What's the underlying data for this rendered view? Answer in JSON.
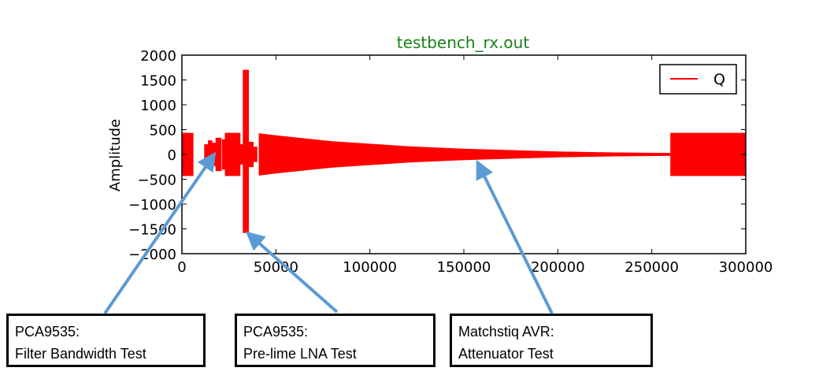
{
  "chart_data": {
    "type": "line",
    "title": "testbench_rx.out",
    "xlabel": "",
    "ylabel": "Amplitude",
    "xlim": [
      0,
      300000
    ],
    "ylim": [
      -2000,
      2000
    ],
    "xticks": [
      0,
      50000,
      100000,
      150000,
      200000,
      250000,
      300000
    ],
    "yticks": [
      2000,
      1500,
      1000,
      500,
      0,
      -500,
      -1000,
      -1500,
      -2000
    ],
    "xtick_labels": [
      "0",
      "50000",
      "100000",
      "150000",
      "200000",
      "250000",
      "300000"
    ],
    "ytick_labels": [
      "2000",
      "1500",
      "1000",
      "500",
      "0",
      "−500",
      "−1000",
      "−1500",
      "−2000"
    ],
    "legend": {
      "placement": "top-right",
      "entries": [
        "Q"
      ]
    },
    "grid": false,
    "series": [
      {
        "name": "Q",
        "color": "#ff0000",
        "style": "envelope",
        "segments": [
          {
            "x0": 0,
            "x1": 6000,
            "upper": [
              [
                0,
                430
              ],
              [
                6000,
                430
              ]
            ],
            "lower": [
              [
                0,
                -430
              ],
              [
                6000,
                -430
              ]
            ]
          },
          {
            "x0": 12000,
            "x1": 14000,
            "upper": [
              [
                12000,
                200
              ],
              [
                14000,
                200
              ]
            ],
            "lower": [
              [
                12000,
                -200
              ],
              [
                14000,
                -200
              ]
            ]
          },
          {
            "x0": 14000,
            "x1": 16000,
            "upper": [
              [
                14000,
                280
              ],
              [
                16000,
                280
              ]
            ],
            "lower": [
              [
                14000,
                -280
              ],
              [
                16000,
                -280
              ]
            ]
          },
          {
            "x0": 16000,
            "x1": 18000,
            "upper": [
              [
                16000,
                230
              ],
              [
                18000,
                230
              ]
            ],
            "lower": [
              [
                16000,
                -230
              ],
              [
                18000,
                -230
              ]
            ]
          },
          {
            "x0": 18000,
            "x1": 21000,
            "upper": [
              [
                18000,
                330
              ],
              [
                21000,
                330
              ]
            ],
            "lower": [
              [
                18000,
                -330
              ],
              [
                21000,
                -330
              ]
            ]
          },
          {
            "x0": 21500,
            "x1": 23000,
            "upper": [
              [
                21500,
                300
              ],
              [
                23000,
                300
              ]
            ],
            "lower": [
              [
                21500,
                -300
              ],
              [
                23000,
                -300
              ]
            ]
          },
          {
            "x0": 23000,
            "x1": 31000,
            "upper": [
              [
                23000,
                430
              ],
              [
                31000,
                430
              ]
            ],
            "lower": [
              [
                23000,
                -430
              ],
              [
                31000,
                -430
              ]
            ]
          },
          {
            "x0": 31000,
            "x1": 32500,
            "upper": [
              [
                31000,
                200
              ],
              [
                32500,
                200
              ]
            ],
            "lower": [
              [
                31000,
                -200
              ],
              [
                32500,
                -200
              ]
            ]
          },
          {
            "x0": 32500,
            "x1": 35500,
            "upper": [
              [
                32500,
                1700
              ],
              [
                35500,
                1700
              ]
            ],
            "lower": [
              [
                32500,
                -1580
              ],
              [
                35500,
                -1580
              ]
            ]
          },
          {
            "x0": 35500,
            "x1": 38000,
            "upper": [
              [
                35500,
                250
              ],
              [
                38000,
                250
              ]
            ],
            "lower": [
              [
                35500,
                -250
              ],
              [
                38000,
                -250
              ]
            ]
          },
          {
            "x0": 38000,
            "x1": 40000,
            "upper": [
              [
                38000,
                150
              ],
              [
                40000,
                150
              ]
            ],
            "lower": [
              [
                38000,
                -150
              ],
              [
                40000,
                -150
              ]
            ]
          },
          {
            "x0": 41000,
            "x1": 260000,
            "upper": [
              [
                41000,
                420
              ],
              [
                50000,
                380
              ],
              [
                80000,
                260
              ],
              [
                120000,
                160
              ],
              [
                150000,
                110
              ],
              [
                200000,
                55
              ],
              [
                230000,
                35
              ],
              [
                260000,
                25
              ]
            ],
            "lower": [
              [
                41000,
                -420
              ],
              [
                50000,
                -380
              ],
              [
                80000,
                -260
              ],
              [
                120000,
                -160
              ],
              [
                150000,
                -110
              ],
              [
                200000,
                -55
              ],
              [
                230000,
                -35
              ],
              [
                260000,
                -25
              ]
            ]
          },
          {
            "x0": 260000,
            "x1": 300000,
            "upper": [
              [
                260000,
                430
              ],
              [
                300000,
                430
              ]
            ],
            "lower": [
              [
                260000,
                -430
              ],
              [
                300000,
                -430
              ]
            ]
          }
        ]
      }
    ],
    "annotations": [
      {
        "lines": [
          "PCA9535:",
          "Filter Bandwidth Test"
        ],
        "target": [
          14000,
          -200
        ]
      },
      {
        "lines": [
          "PCA9535:",
          "Pre-lime LNA Test"
        ],
        "target": [
          36000,
          -1580
        ]
      },
      {
        "lines": [
          "Matchstiq AVR:",
          "Attenuator Test"
        ],
        "target": [
          158000,
          -120
        ]
      }
    ],
    "colors": {
      "title": "#1a7f1a",
      "data": "#ff0000",
      "arrow": "#5b9bd5"
    }
  }
}
